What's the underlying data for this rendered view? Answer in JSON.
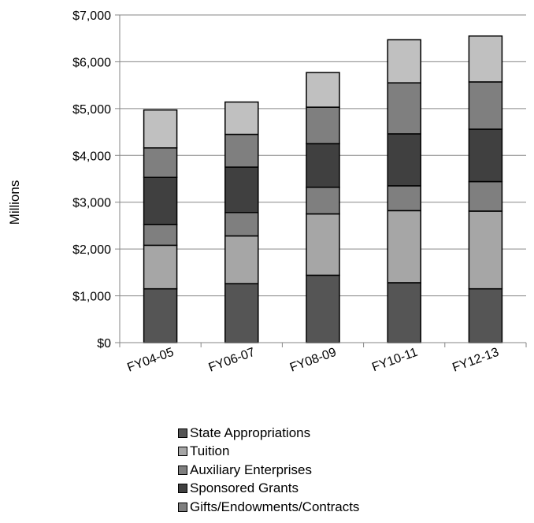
{
  "chart_data": {
    "type": "bar",
    "stacked": true,
    "categories": [
      "FY04-05",
      "FY06-07",
      "FY08-09",
      "FY10-11",
      "FY12-13"
    ],
    "ylabel": "Millions",
    "ylim": [
      0,
      7000
    ],
    "yticks": [
      0,
      1000,
      2000,
      3000,
      4000,
      5000,
      6000,
      7000
    ],
    "ytick_labels": [
      "$0",
      "$1,000",
      "$2,000",
      "$3,000",
      "$4,000",
      "$5,000",
      "$6,000",
      "$7,000"
    ],
    "grid": true,
    "legend_position": "bottom",
    "series": [
      {
        "name": "State Appropriations",
        "color": "#555555",
        "values": [
          1150,
          1260,
          1440,
          1280,
          1150
        ]
      },
      {
        "name": "Tuition",
        "color": "#a6a6a6",
        "values": [
          930,
          1020,
          1310,
          1540,
          1660
        ]
      },
      {
        "name": "Auxiliary Enterprises",
        "color": "#7f7f7f",
        "values": [
          440,
          500,
          570,
          530,
          630
        ]
      },
      {
        "name": "Sponsored Grants",
        "color": "#404040",
        "values": [
          1010,
          970,
          930,
          1110,
          1120
        ]
      },
      {
        "name": "Gifts/Endowments/Contracts",
        "color": "#7f7f7f",
        "values": [
          630,
          700,
          780,
          1090,
          1010
        ]
      },
      {
        "name": "",
        "color": "#c0c0c0",
        "values": [
          810,
          690,
          740,
          920,
          980
        ]
      }
    ]
  }
}
